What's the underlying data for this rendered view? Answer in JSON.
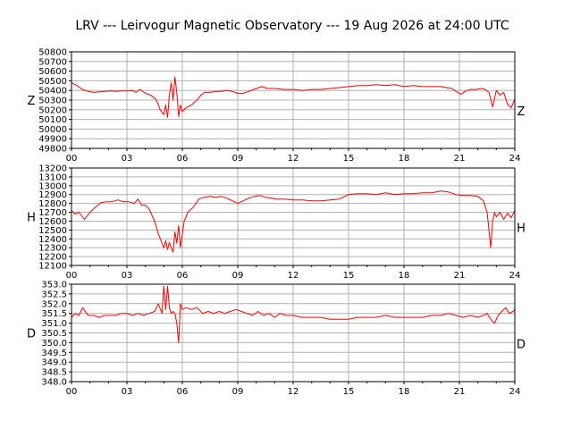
{
  "title": "LRV --- Leirvogur Magnetic Observatory --- 19 Aug 2026 at 24:00 UTC",
  "colors": {
    "series": "#ff0000",
    "grid": "#b0b0b0",
    "axis": "#000000",
    "background": "#ffffff"
  },
  "chart_data": [
    {
      "type": "line",
      "component": "Z",
      "left_label": "Z",
      "right_label": "Z",
      "xlim": [
        0,
        24
      ],
      "ylim": [
        49800,
        50800
      ],
      "x_ticks": [
        "00",
        "03",
        "06",
        "09",
        "12",
        "15",
        "18",
        "21",
        "24"
      ],
      "y_ticks": [
        "49800",
        "49900",
        "50000",
        "50100",
        "50200",
        "50300",
        "50400",
        "50500",
        "50600",
        "50700",
        "50800"
      ],
      "grid": true,
      "series": [
        {
          "x": [
            0,
            0.3,
            0.6,
            0.9,
            1.2,
            1.5,
            1.8,
            2.1,
            2.4,
            2.7,
            3.0,
            3.3,
            3.5,
            3.7,
            4.0,
            4.3,
            4.6,
            4.8,
            5.0,
            5.1,
            5.2,
            5.3,
            5.4,
            5.5,
            5.6,
            5.7,
            5.8,
            5.9,
            6.0,
            6.2,
            6.5,
            6.8,
            7.0,
            7.2,
            7.5,
            7.8,
            8.1,
            8.4,
            8.7,
            9.0,
            9.3,
            9.6,
            10.0,
            10.3,
            10.6,
            11.0,
            11.5,
            12.0,
            12.5,
            13.0,
            13.5,
            14.0,
            14.5,
            15.0,
            15.5,
            16.0,
            16.5,
            17.0,
            17.5,
            18.0,
            18.5,
            19.0,
            19.5,
            20.0,
            20.3,
            20.6,
            20.9,
            21.1,
            21.3,
            21.6,
            21.9,
            22.2,
            22.4,
            22.6,
            22.8,
            23.0,
            23.2,
            23.4,
            23.6,
            23.8,
            24.0
          ],
          "y": [
            50480,
            50450,
            50410,
            50390,
            50380,
            50385,
            50390,
            50395,
            50390,
            50395,
            50395,
            50400,
            50380,
            50410,
            50370,
            50350,
            50300,
            50200,
            50150,
            50250,
            50120,
            50350,
            50480,
            50300,
            50540,
            50380,
            50130,
            50250,
            50180,
            50220,
            50250,
            50300,
            50350,
            50380,
            50380,
            50390,
            50390,
            50400,
            50390,
            50370,
            50370,
            50390,
            50420,
            50440,
            50420,
            50420,
            50410,
            50410,
            50400,
            50410,
            50410,
            50420,
            50430,
            50440,
            50450,
            50450,
            50460,
            50450,
            50460,
            50440,
            50450,
            50440,
            50440,
            50440,
            50430,
            50420,
            50380,
            50360,
            50390,
            50410,
            50410,
            50420,
            50410,
            50380,
            50230,
            50400,
            50350,
            50380,
            50260,
            50220,
            50310
          ]
        }
      ]
    },
    {
      "type": "line",
      "component": "H",
      "left_label": "H",
      "right_label": "H",
      "xlim": [
        0,
        24
      ],
      "ylim": [
        12100,
        13200
      ],
      "x_ticks": [
        "00",
        "03",
        "06",
        "09",
        "12",
        "15",
        "18",
        "21",
        "24"
      ],
      "y_ticks": [
        "12100",
        "12200",
        "12300",
        "12400",
        "12500",
        "12600",
        "12700",
        "12800",
        "12900",
        "13000",
        "13100",
        "13200"
      ],
      "grid": true,
      "series": [
        {
          "x": [
            0,
            0.2,
            0.4,
            0.7,
            1.0,
            1.3,
            1.6,
            1.9,
            2.2,
            2.5,
            2.8,
            3.1,
            3.4,
            3.6,
            3.8,
            4.0,
            4.2,
            4.5,
            4.7,
            4.9,
            5.0,
            5.1,
            5.2,
            5.3,
            5.4,
            5.5,
            5.6,
            5.7,
            5.8,
            5.9,
            6.0,
            6.1,
            6.3,
            6.6,
            6.9,
            7.2,
            7.5,
            7.8,
            8.1,
            8.4,
            8.7,
            9.0,
            9.3,
            9.6,
            9.9,
            10.2,
            10.5,
            10.8,
            11.1,
            11.5,
            12.0,
            12.5,
            13.0,
            13.5,
            14.0,
            14.5,
            15.0,
            15.5,
            16.0,
            16.5,
            17.0,
            17.5,
            18.0,
            18.5,
            19.0,
            19.5,
            20.0,
            20.4,
            20.8,
            21.2,
            21.6,
            22.0,
            22.3,
            22.5,
            22.6,
            22.7,
            22.8,
            22.9,
            23.0,
            23.2,
            23.4,
            23.6,
            23.8,
            24.0
          ],
          "y": [
            12720,
            12680,
            12700,
            12620,
            12700,
            12760,
            12810,
            12820,
            12820,
            12840,
            12820,
            12820,
            12800,
            12850,
            12780,
            12780,
            12740,
            12600,
            12460,
            12350,
            12300,
            12380,
            12280,
            12360,
            12300,
            12250,
            12480,
            12350,
            12550,
            12300,
            12450,
            12600,
            12700,
            12760,
            12850,
            12870,
            12880,
            12870,
            12880,
            12860,
            12830,
            12800,
            12830,
            12860,
            12880,
            12890,
            12870,
            12860,
            12850,
            12850,
            12840,
            12840,
            12830,
            12830,
            12840,
            12850,
            12900,
            12910,
            12910,
            12900,
            12920,
            12900,
            12910,
            12910,
            12920,
            12920,
            12940,
            12930,
            12900,
            12890,
            12890,
            12880,
            12830,
            12700,
            12500,
            12300,
            12600,
            12700,
            12650,
            12700,
            12620,
            12690,
            12640,
            12720
          ]
        }
      ]
    },
    {
      "type": "line",
      "component": "D",
      "left_label": "D",
      "right_label": "D",
      "xlim": [
        0,
        24
      ],
      "ylim": [
        348.0,
        353.0
      ],
      "x_ticks": [
        "00",
        "03",
        "06",
        "09",
        "12",
        "15",
        "18",
        "21",
        "24"
      ],
      "y_ticks": [
        "348.0",
        "348.5",
        "349.0",
        "349.5",
        "350.0",
        "350.5",
        "351.0",
        "351.5",
        "352.0",
        "352.5",
        "353.0"
      ],
      "grid": true,
      "series": [
        {
          "x": [
            0,
            0.2,
            0.4,
            0.6,
            0.9,
            1.2,
            1.5,
            1.8,
            2.1,
            2.4,
            2.7,
            3.0,
            3.3,
            3.6,
            3.9,
            4.2,
            4.5,
            4.7,
            4.9,
            5.0,
            5.1,
            5.2,
            5.3,
            5.4,
            5.5,
            5.6,
            5.7,
            5.8,
            5.9,
            6.0,
            6.2,
            6.5,
            6.8,
            7.1,
            7.4,
            7.7,
            8.0,
            8.3,
            8.6,
            8.9,
            9.2,
            9.5,
            9.8,
            10.1,
            10.4,
            10.7,
            11.0,
            11.3,
            11.6,
            12.0,
            12.5,
            13.0,
            13.5,
            14.0,
            14.5,
            15.0,
            15.5,
            16.0,
            16.5,
            17.0,
            17.5,
            18.0,
            18.5,
            19.0,
            19.5,
            20.0,
            20.4,
            20.8,
            21.2,
            21.6,
            22.0,
            22.3,
            22.5,
            22.7,
            22.9,
            23.1,
            23.3,
            23.5,
            23.7,
            23.9,
            24.0
          ],
          "y": [
            351.3,
            351.5,
            351.4,
            351.8,
            351.4,
            351.4,
            351.3,
            351.4,
            351.4,
            351.4,
            351.5,
            351.5,
            351.4,
            351.5,
            351.4,
            351.5,
            351.6,
            352.0,
            351.5,
            352.9,
            351.7,
            352.9,
            351.8,
            351.5,
            351.6,
            351.5,
            351.0,
            350.0,
            352.0,
            351.7,
            351.8,
            351.7,
            351.8,
            351.5,
            351.6,
            351.5,
            351.6,
            351.5,
            351.6,
            351.7,
            351.6,
            351.5,
            351.4,
            351.6,
            351.4,
            351.5,
            351.3,
            351.5,
            351.4,
            351.4,
            351.3,
            351.3,
            351.3,
            351.2,
            351.2,
            351.2,
            351.3,
            351.3,
            351.3,
            351.4,
            351.3,
            351.3,
            351.3,
            351.3,
            351.4,
            351.4,
            351.5,
            351.4,
            351.3,
            351.4,
            351.3,
            351.4,
            351.5,
            351.2,
            351.0,
            351.4,
            351.6,
            351.8,
            351.5,
            351.6,
            351.7
          ]
        }
      ]
    }
  ]
}
